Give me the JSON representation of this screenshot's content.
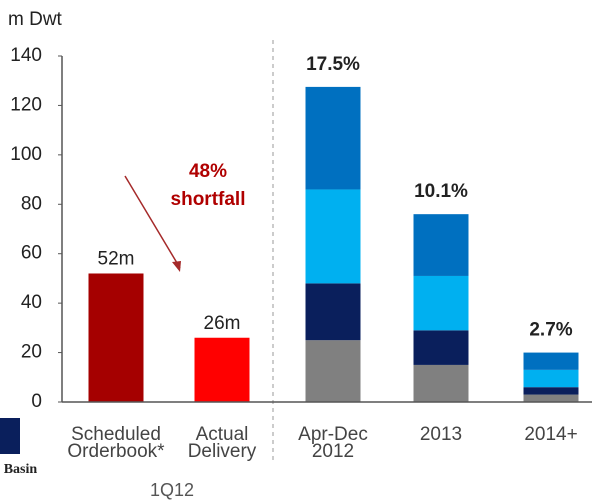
{
  "chart_data": {
    "type": "stacked_bar",
    "y_axis_label": "m Dwt",
    "categories": [
      [
        "Scheduled",
        "Orderbook*"
      ],
      [
        "Actual",
        "Delivery"
      ],
      [
        "Apr-Dec",
        "2012"
      ],
      [
        "2013"
      ],
      [
        "2014+"
      ]
    ],
    "group_label": "1Q12",
    "ylim": [
      0,
      140
    ],
    "yticks": [
      0,
      20,
      40,
      60,
      80,
      100,
      120,
      140
    ],
    "series": [
      {
        "color": "#a50000",
        "values": [
          52,
          null,
          null,
          null,
          null
        ],
        "value_labels": [
          "52m",
          null,
          null,
          null,
          null
        ]
      },
      {
        "color": "#ff0000",
        "values": [
          null,
          26,
          null,
          null,
          null
        ],
        "value_labels": [
          null,
          "26m",
          null,
          null,
          null
        ]
      },
      {
        "color": "#808080",
        "values": [
          null,
          null,
          25,
          15,
          3
        ]
      },
      {
        "color": "#0a1f5c",
        "values": [
          null,
          null,
          23,
          14,
          3
        ]
      },
      {
        "color": "#00b0f0",
        "values": [
          null,
          null,
          38,
          22,
          7
        ]
      },
      {
        "color": "#0070c0",
        "values": [
          null,
          null,
          41.5,
          25,
          7
        ]
      }
    ],
    "bar_annotations": [
      null,
      null,
      "17.5%",
      "10.1%",
      "2.7%"
    ],
    "shortfall_annotation": [
      "48%",
      "shortfall"
    ],
    "logo_text": "c Basin"
  }
}
